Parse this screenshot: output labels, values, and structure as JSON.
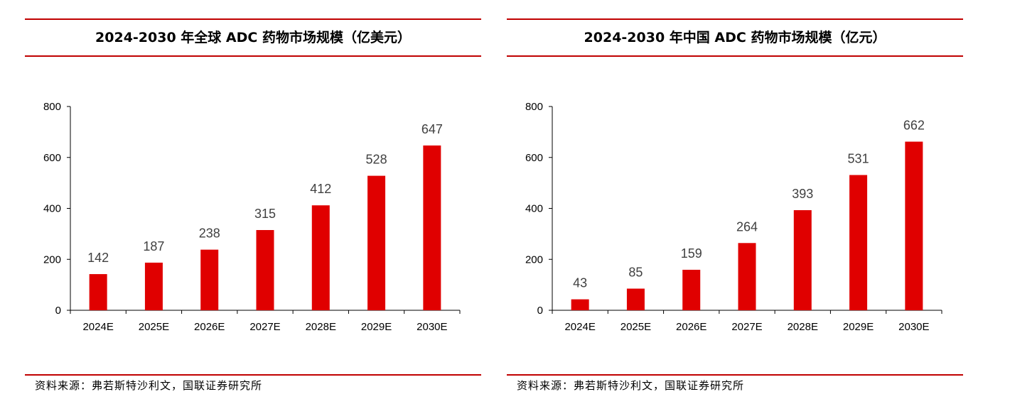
{
  "charts": [
    {
      "title": "2024-2030 年全球 ADC 药物市场规模（亿美元）",
      "source": "资料来源：弗若斯特沙利文，国联证券研究所",
      "chart_data": {
        "type": "bar",
        "title": "2024-2030 年全球 ADC 药物市场规模（亿美元）",
        "categories": [
          "2024E",
          "2025E",
          "2026E",
          "2027E",
          "2028E",
          "2029E",
          "2030E"
        ],
        "values": [
          142,
          187,
          238,
          315,
          412,
          528,
          647
        ],
        "value_labels": [
          "142",
          "187",
          "238",
          "315",
          "412",
          "528",
          "647"
        ],
        "yticks": [
          "0",
          "200",
          "400",
          "600",
          "800"
        ],
        "ylim": [
          0,
          800
        ],
        "grid": false,
        "legend": "none",
        "bar_color": "#e00000"
      }
    },
    {
      "title": "2024-2030 年中国 ADC 药物市场规模（亿元）",
      "source": "资料来源：弗若斯特沙利文，国联证券研究所",
      "chart_data": {
        "type": "bar",
        "title": "2024-2030 年中国 ADC 药物市场规模（亿元）",
        "categories": [
          "2024E",
          "2025E",
          "2026E",
          "2027E",
          "2028E",
          "2029E",
          "2030E"
        ],
        "values": [
          43,
          85,
          159,
          264,
          393,
          531,
          662
        ],
        "value_labels": [
          "43",
          "85",
          "159",
          "264",
          "393",
          "531",
          "662"
        ],
        "yticks": [
          "0",
          "200",
          "400",
          "600",
          "800"
        ],
        "ylim": [
          0,
          800
        ],
        "grid": false,
        "legend": "none",
        "bar_color": "#e00000"
      }
    }
  ],
  "axis_color": "#000000",
  "label_color": "#404040",
  "rule_color": "#c00000"
}
